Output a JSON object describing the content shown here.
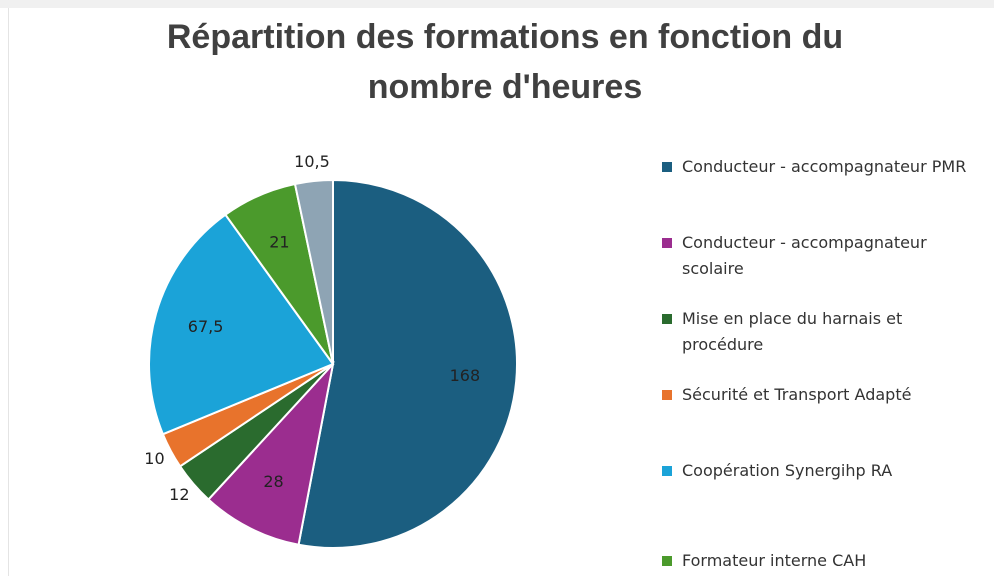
{
  "chart_data": {
    "type": "pie",
    "title": "Répartition des formations en fonction du nombre d'heures",
    "categories": [
      "Conducteur - accompagnateur PMR",
      "Conducteur - accompagnateur scolaire",
      "Mise en place du harnais et procédure",
      "Sécurité et Transport Adapté",
      "Coopération Synergihp RA",
      "Formateur interne CAH",
      null
    ],
    "values": [
      168,
      28,
      12,
      10,
      67.5,
      21,
      10.5
    ],
    "value_labels": [
      "168",
      "28",
      "12",
      "10",
      "67,5",
      "21",
      "10,5"
    ],
    "colors": [
      "#1b5e80",
      "#9b2d8f",
      "#2a6b2e",
      "#e8732c",
      "#1ba3d8",
      "#4b9a2c",
      "#8ea4b4"
    ]
  }
}
